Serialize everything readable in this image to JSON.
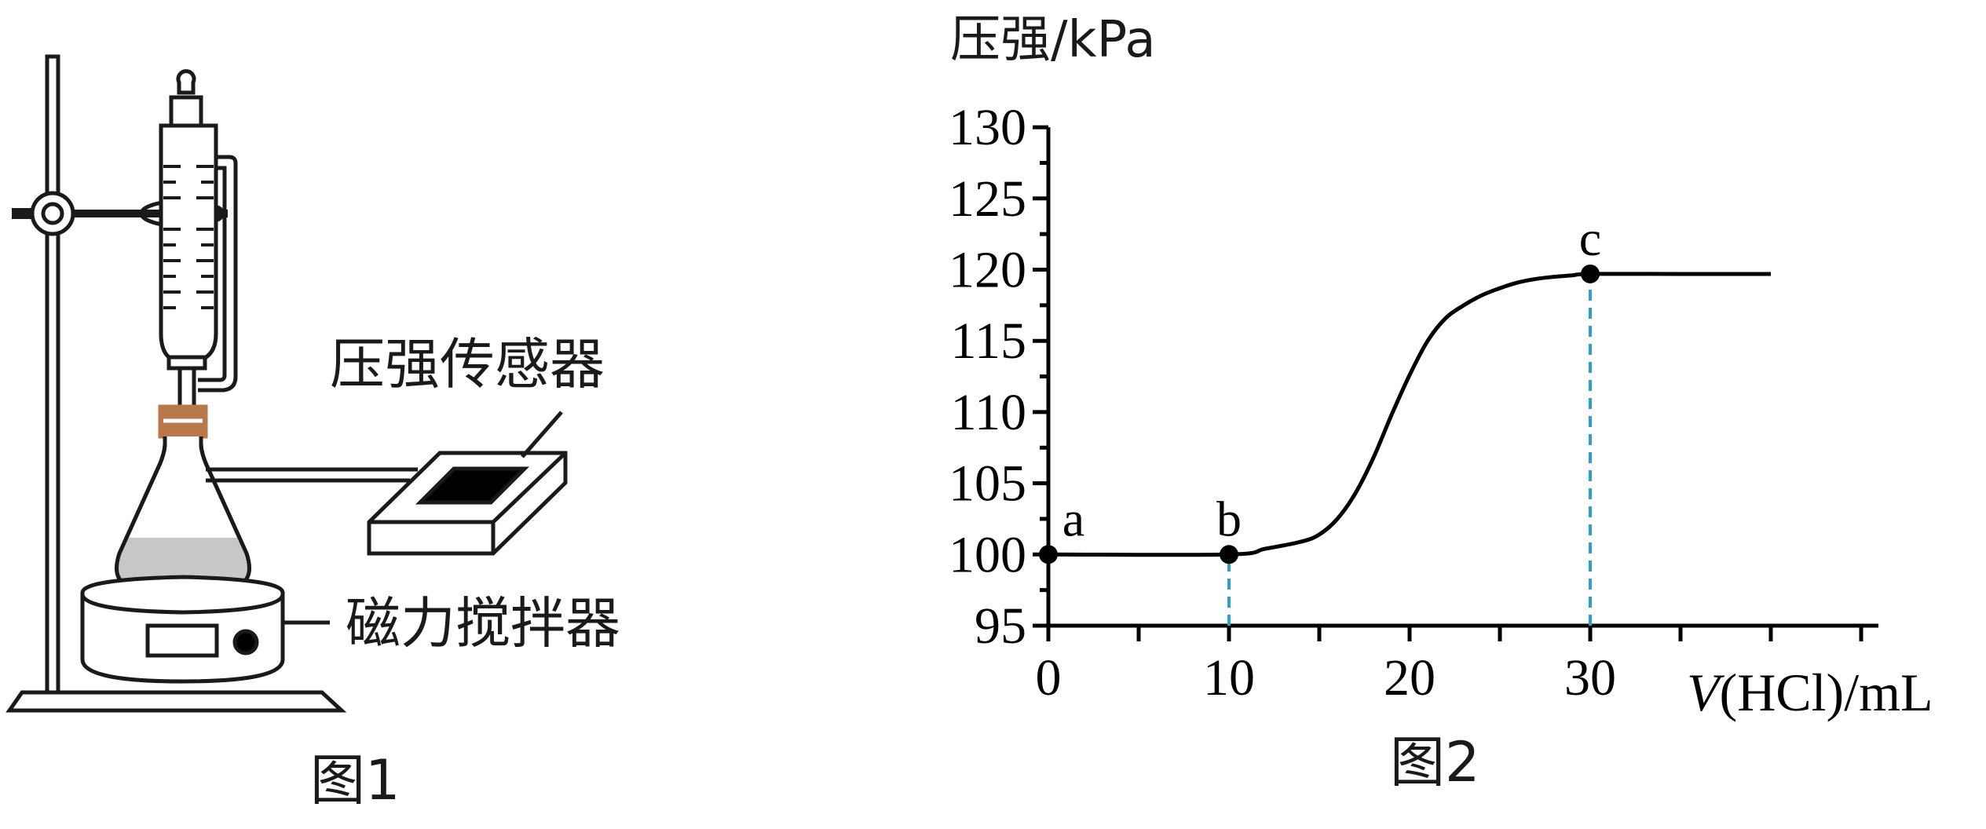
{
  "figure1": {
    "caption": "图1",
    "label_pressure_sensor": "压强传感器",
    "label_magnetic_stirrer": "磁力搅拌器"
  },
  "figure2": {
    "caption": "图2"
  },
  "chart_data": {
    "type": "line",
    "ylabel": "压强/kPa",
    "xlabel_italic": "V",
    "xlabel_rest": "(HCl)/mL",
    "ylim": [
      95,
      130
    ],
    "xlim": [
      0,
      45
    ],
    "yticks": [
      95,
      100,
      105,
      110,
      115,
      120,
      125,
      130
    ],
    "xticks_labeled": [
      0,
      10,
      20,
      30
    ],
    "xticks_minor": [
      5,
      15,
      25,
      35,
      40,
      45
    ],
    "yticks_minor": [
      97.5,
      102.5,
      107.5,
      112.5,
      117.5,
      122.5,
      127.5
    ],
    "series": [
      {
        "x": [
          0,
          10,
          12,
          14,
          15,
          16,
          17,
          18,
          19,
          20,
          21,
          22,
          23,
          24,
          25,
          26,
          27,
          28,
          29,
          30,
          35,
          40
        ],
        "y": [
          100,
          100,
          100.4,
          100.9,
          101.4,
          102.5,
          104.3,
          106.8,
          109.8,
          112.6,
          115,
          116.6,
          117.5,
          118.2,
          118.7,
          119.1,
          119.35,
          119.5,
          119.6,
          119.7,
          119.7,
          119.7
        ]
      }
    ],
    "points": [
      {
        "label": "a",
        "x": 0,
        "y": 100
      },
      {
        "label": "b",
        "x": 10,
        "y": 100
      },
      {
        "label": "c",
        "x": 30,
        "y": 119.7
      }
    ],
    "guides": [
      {
        "x": 10,
        "from_y": 95,
        "to_y": 100,
        "color": "#2a9fd6",
        "style": "dashed"
      },
      {
        "x": 30,
        "from_y": 95,
        "to_y": 119.7,
        "color": "#2a9fd6",
        "style": "dashed"
      }
    ],
    "line_color": "#000000",
    "grid": false
  }
}
